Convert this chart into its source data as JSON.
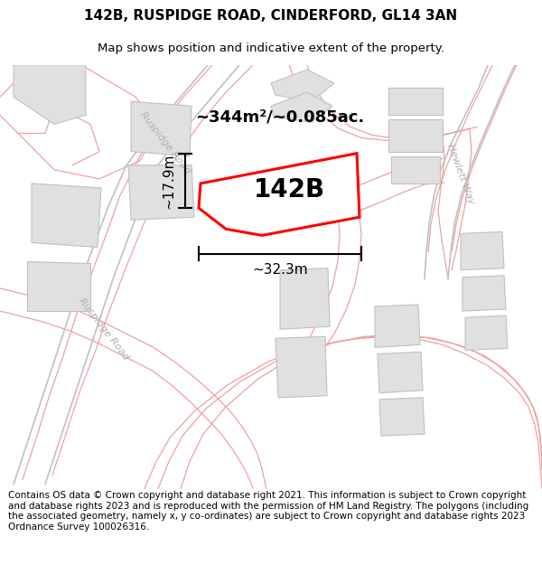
{
  "title_line1": "142B, RUSPIDGE ROAD, CINDERFORD, GL14 3AN",
  "title_line2": "Map shows position and indicative extent of the property.",
  "property_label": "142B",
  "area_label": "~344m²/~0.085ac.",
  "width_label": "~32.3m",
  "height_label": "~17.9m",
  "footer_text": "Contains OS data © Crown copyright and database right 2021. This information is subject to Crown copyright and database rights 2023 and is reproduced with the permission of HM Land Registry. The polygons (including the associated geometry, namely x, y co-ordinates) are subject to Crown copyright and database rights 2023 Ordnance Survey 100026316.",
  "bg_color": "#f8f8f8",
  "building_color": "#e0e0e0",
  "building_outline": "#c0c0c0",
  "road_line_color": "#f0a0a0",
  "road_gray_color": "#c0c0c0",
  "property_outline_color": "#ff0000",
  "property_fill_color": "#ffffff",
  "road_label_color": "#b0b0b0",
  "title_fontsize": 11,
  "subtitle_fontsize": 9.5,
  "footer_fontsize": 7.5
}
